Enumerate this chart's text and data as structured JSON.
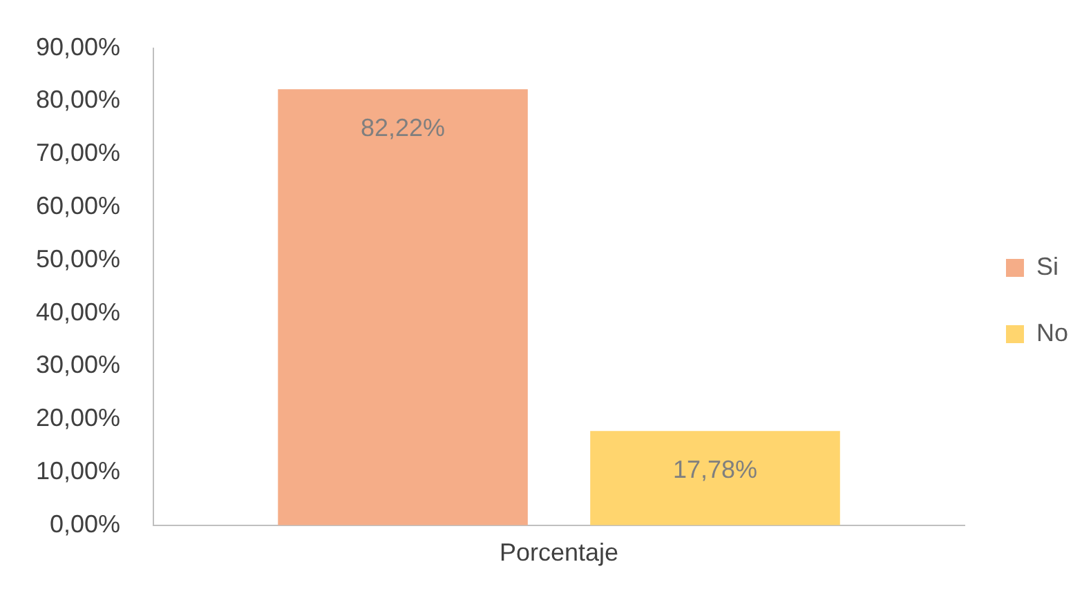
{
  "chart_data": {
    "type": "bar",
    "categories": [
      "Porcentaje"
    ],
    "series": [
      {
        "name": "Si",
        "color": "#f5ad88",
        "values": [
          82.22
        ],
        "value_labels": [
          "82,22%"
        ]
      },
      {
        "name": "No",
        "color": "#ffd56e",
        "values": [
          17.78
        ],
        "value_labels": [
          "17,78%"
        ]
      }
    ],
    "ylim": [
      0,
      90
    ],
    "yticks": [
      {
        "value": 0,
        "label": "0,00%"
      },
      {
        "value": 10,
        "label": "10,00%"
      },
      {
        "value": 20,
        "label": "20,00%"
      },
      {
        "value": 30,
        "label": "30,00%"
      },
      {
        "value": 40,
        "label": "40,00%"
      },
      {
        "value": 50,
        "label": "50,00%"
      },
      {
        "value": 60,
        "label": "60,00%"
      },
      {
        "value": 70,
        "label": "70,00%"
      },
      {
        "value": 80,
        "label": "80,00%"
      },
      {
        "value": 90,
        "label": "90,00%"
      }
    ],
    "grid": false,
    "legend": "right"
  }
}
